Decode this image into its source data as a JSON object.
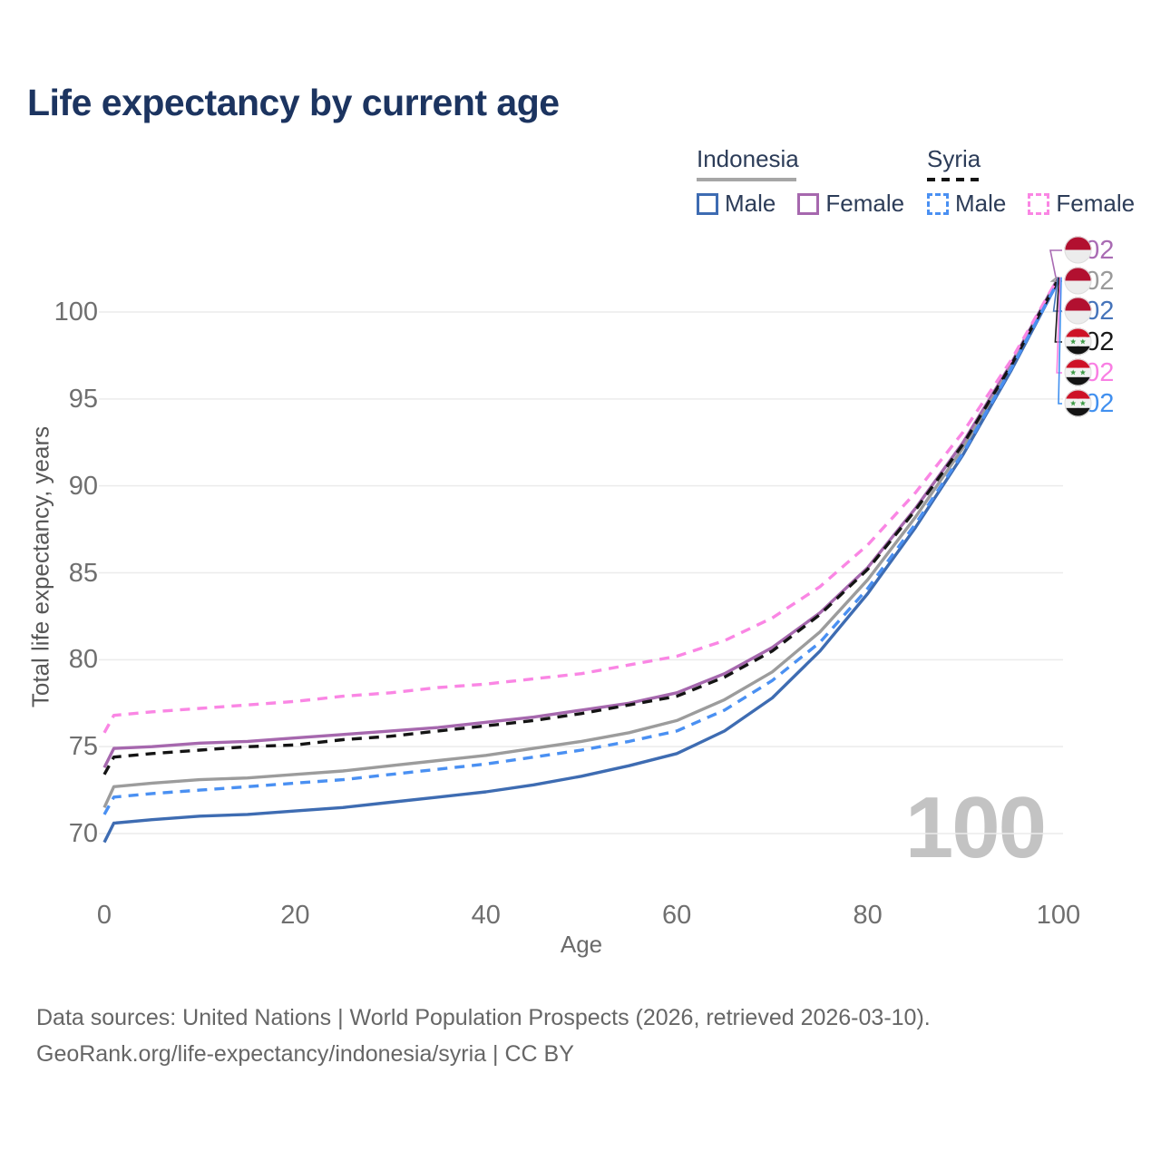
{
  "title": "Life expectancy by current age",
  "legend": {
    "groups": [
      {
        "name": "Indonesia",
        "line_style": "solid",
        "underline_color": "#a6a6a6",
        "items": [
          {
            "label": "Male",
            "color": "#3e6cb2"
          },
          {
            "label": "Female",
            "color": "#a668ae"
          }
        ]
      },
      {
        "name": "Syria",
        "line_style": "dashed",
        "underline_color": "#141414",
        "items": [
          {
            "label": "Male",
            "color": "#4a90f2"
          },
          {
            "label": "Female",
            "color": "#fa86e4"
          }
        ]
      }
    ]
  },
  "axes": {
    "y_title": "Total life expectancy, years",
    "x_title": "Age",
    "y_ticks": [
      70,
      75,
      80,
      85,
      90,
      95,
      100
    ],
    "x_ticks": [
      0,
      20,
      40,
      60,
      80,
      100
    ]
  },
  "age_indicator": "100",
  "right_labels": [
    {
      "flag": "indonesia",
      "series": "Indonesia Female",
      "value": "102",
      "color": "#a96bb3"
    },
    {
      "flag": "indonesia",
      "series": "Indonesia Both sexes",
      "value": "102",
      "color": "#9a9a9a"
    },
    {
      "flag": "indonesia",
      "series": "Indonesia Male",
      "value": "102",
      "color": "#4674ba"
    },
    {
      "flag": "syria",
      "series": "Syria Both sexes",
      "value": "102",
      "color": "#1a1a1a"
    },
    {
      "flag": "syria",
      "series": "Syria Female",
      "value": "102",
      "color": "#f97fe3"
    },
    {
      "flag": "syria",
      "series": "Syria Male",
      "value": "102",
      "color": "#4190ef"
    }
  ],
  "footer": {
    "line1": "Data sources: United Nations | World Population Prospects (2026, retrieved 2026-03-10).",
    "line2": "GeoRank.org/life-expectancy/indonesia/syria | CC BY"
  },
  "chart_data": {
    "type": "line",
    "title": "Life expectancy by current age",
    "xlabel": "Age",
    "ylabel": "Total life expectancy, years",
    "xlim": [
      0,
      100
    ],
    "ylim": [
      70,
      100
    ],
    "grid": "horizontal",
    "legend_position": "top-right",
    "x": [
      0,
      1,
      5,
      10,
      15,
      20,
      25,
      30,
      35,
      40,
      45,
      50,
      55,
      60,
      65,
      70,
      75,
      80,
      85,
      90,
      95,
      100
    ],
    "series": [
      {
        "name": "Indonesia Female",
        "country": "Indonesia",
        "sex": "Female",
        "color": "#a668ae",
        "dash": "solid",
        "values": [
          73.8,
          74.9,
          75.0,
          75.2,
          75.3,
          75.5,
          75.7,
          75.9,
          76.1,
          76.4,
          76.7,
          77.1,
          77.5,
          78.1,
          79.2,
          80.7,
          82.7,
          85.3,
          88.7,
          92.5,
          97.0,
          102.0
        ]
      },
      {
        "name": "Indonesia Both sexes",
        "country": "Indonesia",
        "sex": "Both",
        "color": "#9c9c9c",
        "dash": "solid",
        "values": [
          71.5,
          72.7,
          72.9,
          73.1,
          73.2,
          73.4,
          73.6,
          73.9,
          74.2,
          74.5,
          74.9,
          75.3,
          75.8,
          76.5,
          77.7,
          79.3,
          81.6,
          84.6,
          88.2,
          92.2,
          96.8,
          101.9
        ]
      },
      {
        "name": "Indonesia Male",
        "country": "Indonesia",
        "sex": "Male",
        "color": "#3e6cb2",
        "dash": "solid",
        "values": [
          69.5,
          70.6,
          70.8,
          71.0,
          71.1,
          71.3,
          71.5,
          71.8,
          72.1,
          72.4,
          72.8,
          73.3,
          73.9,
          74.6,
          75.9,
          77.8,
          80.5,
          83.8,
          87.6,
          91.8,
          96.6,
          101.8
        ]
      },
      {
        "name": "Syria Both sexes",
        "country": "Syria",
        "sex": "Both",
        "color": "#141414",
        "dash": "dashed",
        "values": [
          73.4,
          74.4,
          74.6,
          74.8,
          75.0,
          75.1,
          75.4,
          75.6,
          75.9,
          76.2,
          76.5,
          76.9,
          77.4,
          77.9,
          79.0,
          80.5,
          82.6,
          85.2,
          88.6,
          92.4,
          96.9,
          101.9
        ]
      },
      {
        "name": "Syria Female",
        "country": "Syria",
        "sex": "Female",
        "color": "#fa86e4",
        "dash": "dashed",
        "values": [
          75.8,
          76.8,
          77.0,
          77.2,
          77.4,
          77.6,
          77.9,
          78.1,
          78.4,
          78.6,
          78.9,
          79.2,
          79.7,
          80.2,
          81.1,
          82.4,
          84.2,
          86.6,
          89.6,
          93.1,
          97.2,
          102.0
        ]
      },
      {
        "name": "Syria Male",
        "country": "Syria",
        "sex": "Male",
        "color": "#4a90f2",
        "dash": "dashed",
        "values": [
          71.1,
          72.1,
          72.3,
          72.5,
          72.7,
          72.9,
          73.1,
          73.4,
          73.7,
          74.0,
          74.4,
          74.8,
          75.3,
          75.9,
          77.1,
          78.8,
          81.0,
          84.1,
          87.8,
          91.9,
          96.7,
          101.8
        ]
      }
    ],
    "end_labels": {
      "age": 100,
      "value": 102
    }
  }
}
